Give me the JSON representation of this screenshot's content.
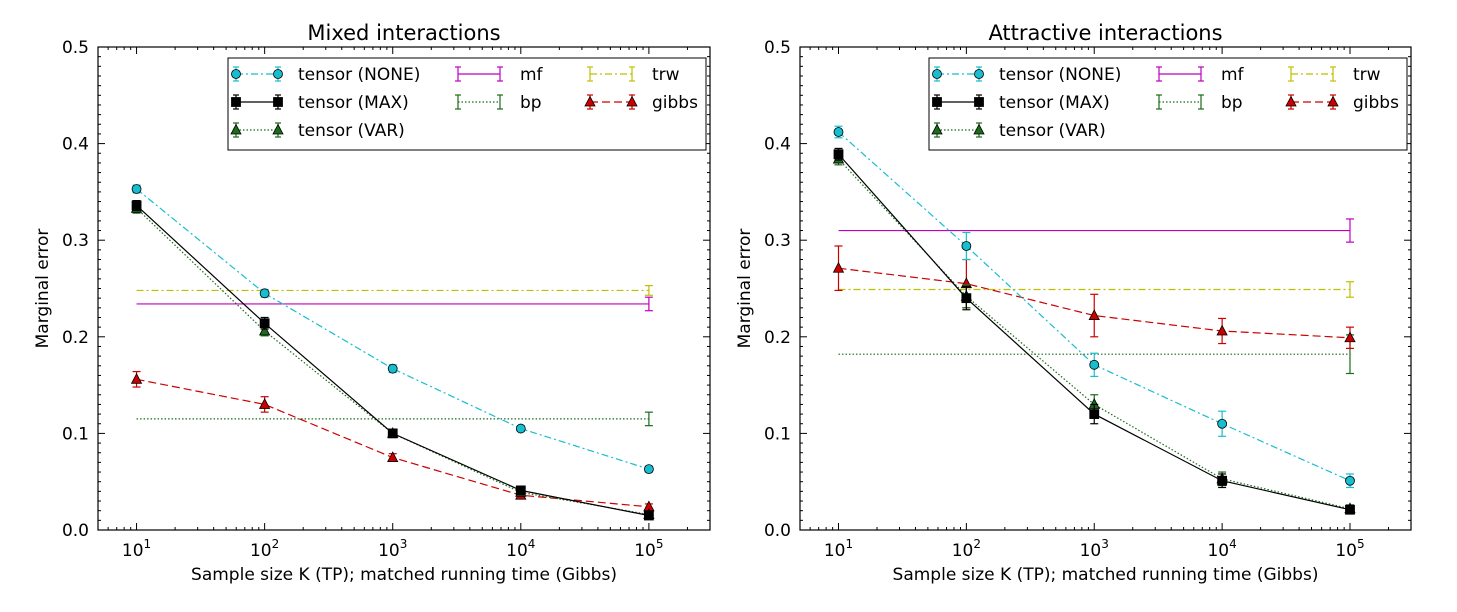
{
  "chart_data": [
    {
      "type": "line",
      "title": "Mixed interactions",
      "xlabel": "Sample size K (TP); matched running time (Gibbs)",
      "ylabel": "Marginal error",
      "xscale": "log",
      "xlim": [
        5,
        300000
      ],
      "ylim": [
        0,
        0.5
      ],
      "xticks": [
        10,
        100,
        1000,
        10000,
        100000
      ],
      "xtick_labels": [
        [
          "10",
          "1"
        ],
        [
          "10",
          "2"
        ],
        [
          "10",
          "3"
        ],
        [
          "10",
          "4"
        ],
        [
          "10",
          "5"
        ]
      ],
      "yticks": [
        0.0,
        0.1,
        0.2,
        0.3,
        0.4,
        0.5
      ],
      "ytick_labels": [
        "0.0",
        "0.1",
        "0.2",
        "0.3",
        "0.4",
        "0.5"
      ],
      "grid": false,
      "legend_position": "top-right",
      "series": [
        {
          "name": "tensor (NONE)",
          "color": "#17becf",
          "dash": "7,3,2,3",
          "marker": "circle",
          "x": [
            10,
            100,
            1000,
            10000,
            100000
          ],
          "y": [
            0.353,
            0.245,
            0.167,
            0.105,
            0.063
          ],
          "err": [
            0.004,
            0.004,
            0.004,
            0.003,
            0.003
          ]
        },
        {
          "name": "tensor (MAX)",
          "color": "#000000",
          "dash": "",
          "marker": "square",
          "x": [
            10,
            100,
            1000,
            10000,
            100000
          ],
          "y": [
            0.336,
            0.214,
            0.1,
            0.041,
            0.015
          ],
          "err": [
            0.005,
            0.006,
            0.003,
            0.003,
            0.002
          ]
        },
        {
          "name": "tensor (VAR)",
          "color": "#1a6b1a",
          "dash": "1.5,2",
          "marker": "triangle",
          "x": [
            10,
            100,
            1000,
            10000,
            100000
          ],
          "y": [
            0.333,
            0.206,
            0.1,
            0.039,
            0.016
          ],
          "err": [
            0.005,
            0.005,
            0.003,
            0.003,
            0.002
          ]
        },
        {
          "name": "mf",
          "color": "#bf00bf",
          "dash": "",
          "marker": "none",
          "hline": true,
          "x": [
            10,
            100000
          ],
          "y": [
            0.234,
            0.234
          ],
          "err": [
            0,
            0.007
          ]
        },
        {
          "name": "bp",
          "color": "#1a6b1a",
          "dash": "1.5,2",
          "marker": "none",
          "hline": true,
          "x": [
            10,
            100000
          ],
          "y": [
            0.115,
            0.115
          ],
          "err": [
            0,
            0.007
          ]
        },
        {
          "name": "trw",
          "color": "#bfbf00",
          "dash": "7,3,2,3",
          "marker": "none",
          "hline": true,
          "x": [
            10,
            100000
          ],
          "y": [
            0.248,
            0.248
          ],
          "err": [
            0,
            0.005
          ]
        },
        {
          "name": "gibbs",
          "color": "#cc0000",
          "dash": "8,4",
          "marker": "triangle",
          "x": [
            10,
            100,
            1000,
            10000,
            100000
          ],
          "y": [
            0.156,
            0.13,
            0.075,
            0.036,
            0.024
          ],
          "err": [
            0.008,
            0.008,
            0.004,
            0.003,
            0.003
          ]
        }
      ]
    },
    {
      "type": "line",
      "title": "Attractive interactions",
      "xlabel": "Sample size K (TP); matched running time (Gibbs)",
      "ylabel": "Marginal error",
      "xscale": "log",
      "xlim": [
        5,
        300000
      ],
      "ylim": [
        0,
        0.5
      ],
      "xticks": [
        10,
        100,
        1000,
        10000,
        100000
      ],
      "xtick_labels": [
        [
          "10",
          "1"
        ],
        [
          "10",
          "2"
        ],
        [
          "10",
          "3"
        ],
        [
          "10",
          "4"
        ],
        [
          "10",
          "5"
        ]
      ],
      "yticks": [
        0.0,
        0.1,
        0.2,
        0.3,
        0.4,
        0.5
      ],
      "ytick_labels": [
        "0.0",
        "0.1",
        "0.2",
        "0.3",
        "0.4",
        "0.5"
      ],
      "grid": false,
      "legend_position": "top-right",
      "series": [
        {
          "name": "tensor (NONE)",
          "color": "#17becf",
          "dash": "7,3,2,3",
          "marker": "circle",
          "x": [
            10,
            100,
            1000,
            10000,
            100000
          ],
          "y": [
            0.412,
            0.294,
            0.171,
            0.11,
            0.051
          ],
          "err": [
            0.006,
            0.014,
            0.012,
            0.013,
            0.007
          ]
        },
        {
          "name": "tensor (MAX)",
          "color": "#000000",
          "dash": "",
          "marker": "square",
          "x": [
            10,
            100,
            1000,
            10000,
            100000
          ],
          "y": [
            0.389,
            0.24,
            0.12,
            0.051,
            0.021
          ],
          "err": [
            0.006,
            0.012,
            0.01,
            0.007,
            0.004
          ]
        },
        {
          "name": "tensor (VAR)",
          "color": "#1a6b1a",
          "dash": "1.5,2",
          "marker": "triangle",
          "x": [
            10,
            100,
            1000,
            10000,
            100000
          ],
          "y": [
            0.384,
            0.242,
            0.13,
            0.053,
            0.022
          ],
          "err": [
            0.006,
            0.012,
            0.01,
            0.007,
            0.004
          ]
        },
        {
          "name": "mf",
          "color": "#bf00bf",
          "dash": "",
          "marker": "none",
          "hline": true,
          "x": [
            10,
            100000
          ],
          "y": [
            0.31,
            0.31
          ],
          "err": [
            0,
            0.012
          ]
        },
        {
          "name": "bp",
          "color": "#1a6b1a",
          "dash": "1.5,2",
          "marker": "none",
          "hline": true,
          "x": [
            10,
            100000
          ],
          "y": [
            0.182,
            0.182
          ],
          "err": [
            0,
            0.02
          ]
        },
        {
          "name": "trw",
          "color": "#bfbf00",
          "dash": "7,3,2,3",
          "marker": "none",
          "hline": true,
          "x": [
            10,
            100000
          ],
          "y": [
            0.249,
            0.249
          ],
          "err": [
            0,
            0.008
          ]
        },
        {
          "name": "gibbs",
          "color": "#cc0000",
          "dash": "8,4",
          "marker": "triangle",
          "x": [
            10,
            100,
            1000,
            10000,
            100000
          ],
          "y": [
            0.271,
            0.255,
            0.222,
            0.206,
            0.199
          ],
          "err": [
            0.023,
            0.025,
            0.022,
            0.013,
            0.011
          ]
        }
      ]
    }
  ]
}
